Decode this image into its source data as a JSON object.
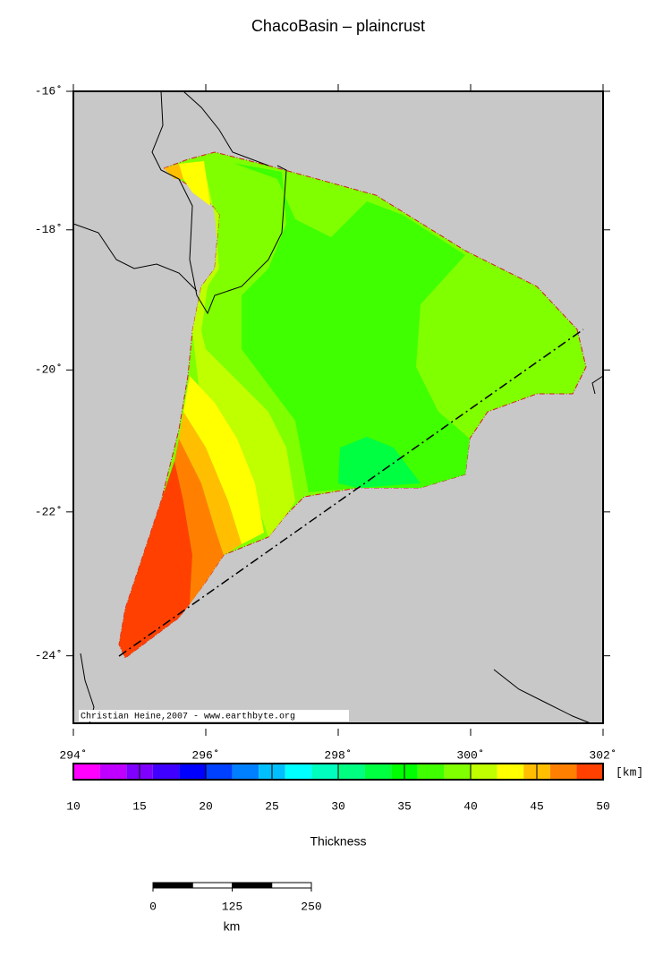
{
  "title": "ChacoBasin – plaincrust",
  "map": {
    "xlim": [
      294,
      302
    ],
    "ylim": [
      -25,
      -16
    ],
    "xticks": [
      {
        "value": 294,
        "label": "294˚"
      },
      {
        "value": 296,
        "label": "296˚"
      },
      {
        "value": 298,
        "label": "298˚"
      },
      {
        "value": 300,
        "label": "300˚"
      },
      {
        "value": 302,
        "label": "302˚"
      }
    ],
    "yticks": [
      {
        "value": -16,
        "label": "-16˚"
      },
      {
        "value": -18,
        "label": "-18˚"
      },
      {
        "value": -20,
        "label": "-20˚"
      },
      {
        "value": -22,
        "label": "-22˚"
      },
      {
        "value": -24,
        "label": "-24˚"
      }
    ],
    "credit": "Christian Heine,2007 - www.earthbyte.org"
  },
  "colorbar": {
    "label": "Thickness",
    "unit": "[km]",
    "range": [
      10,
      50
    ],
    "ticks": [
      10,
      15,
      20,
      25,
      30,
      35,
      40,
      45,
      50
    ],
    "colors": [
      "#ff00ff",
      "#bf00ff",
      "#8000ff",
      "#4000ff",
      "#0000ff",
      "#0040ff",
      "#0080ff",
      "#00bfff",
      "#00ffff",
      "#00ffbf",
      "#00ff80",
      "#00ff40",
      "#00ff00",
      "#40ff00",
      "#80ff00",
      "#bfff00",
      "#ffff00",
      "#ffbf00",
      "#ff8000",
      "#ff4000"
    ]
  },
  "scalebar": {
    "ticks": [
      0,
      125,
      250
    ],
    "unit": "km"
  }
}
